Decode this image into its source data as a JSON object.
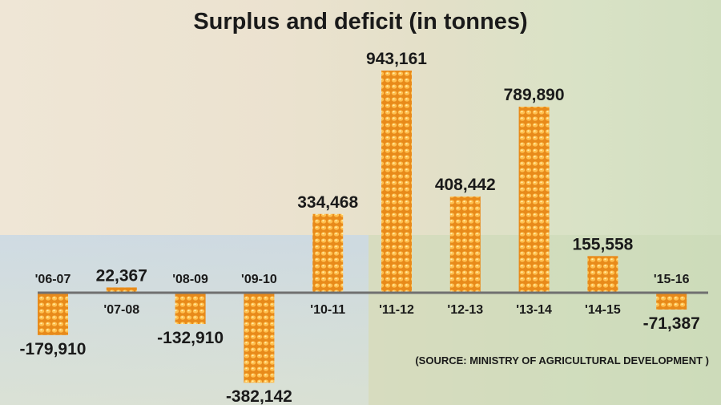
{
  "chart_data": {
    "type": "bar",
    "title": "Surplus and deficit (in tonnes)",
    "categories": [
      "'06-07",
      "'07-08",
      "'08-09",
      "'09-10",
      "'10-11",
      "'11-12",
      "'12-13",
      "'13-14",
      "'14-15",
      "'15-16"
    ],
    "values": [
      -179910,
      22367,
      -132910,
      -382142,
      334468,
      943161,
      408442,
      789890,
      155558,
      -71387
    ],
    "value_labels": [
      "-179,910",
      "22,367",
      "-132,910",
      "-382,142",
      "334,468",
      "943,161",
      "408,442",
      "789,890",
      "155,558",
      "-71,387"
    ],
    "xlabel": "",
    "ylabel": "",
    "ylim": [
      -400000,
      1000000
    ],
    "grid": false,
    "bar_color": "#f0a030",
    "source": "(SOURCE: MINISTRY OF AGRICULTURAL DEVELOPMENT )"
  }
}
